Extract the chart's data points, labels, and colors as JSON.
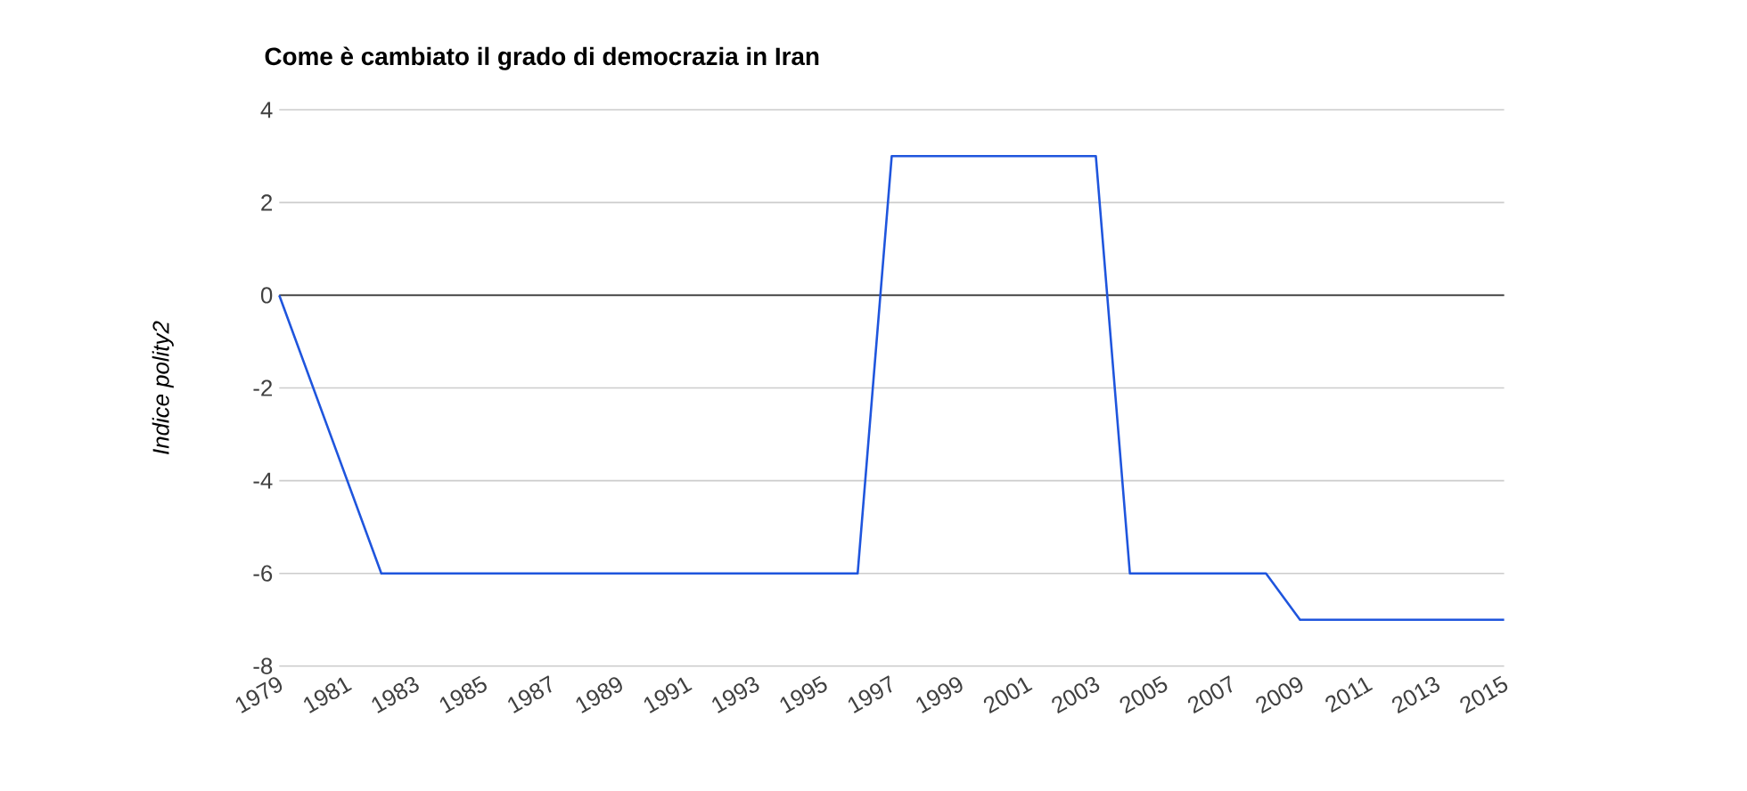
{
  "chart_data": {
    "type": "line",
    "title": "Come è cambiato il grado di democrazia in Iran",
    "ylabel": "Indice polity2",
    "x": [
      1979,
      1982,
      1996,
      1997,
      2003,
      2004,
      2008,
      2009,
      2015
    ],
    "series": [
      {
        "color": "#1f55dd",
        "values": [
          0,
          -6,
          -6,
          3,
          3,
          -6,
          -6,
          -7,
          -7
        ]
      }
    ],
    "xlim": [
      1979,
      2015
    ],
    "xticks": [
      1979,
      1981,
      1983,
      1985,
      1987,
      1989,
      1991,
      1993,
      1995,
      1997,
      1999,
      2001,
      2003,
      2005,
      2007,
      2009,
      2011,
      2013,
      2015
    ],
    "ylim": [
      -8,
      4
    ],
    "yticks": [
      -8,
      -6,
      -4,
      -2,
      0,
      2,
      4
    ],
    "grid": "y",
    "ref_lines": [
      {
        "axis": "y",
        "value": 0,
        "color": "#333333"
      }
    ]
  }
}
